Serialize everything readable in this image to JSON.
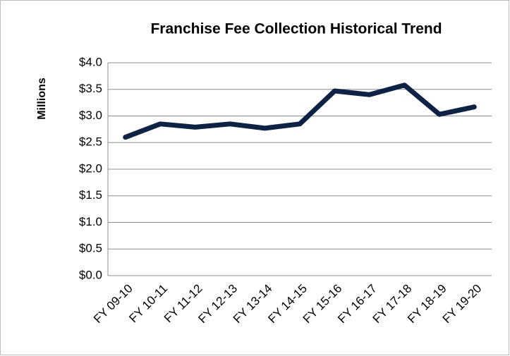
{
  "chart_data": {
    "type": "line",
    "title": "Franchise Fee Collection Historical Trend",
    "y_label": "Millions",
    "categories": [
      "FY 09-10",
      "FY 10-11",
      "FY 11-12",
      "FY 12-13",
      "FY 13-14",
      "FY 14-15",
      "FY 15-16",
      "FY 16-17",
      "FY 17-18",
      "FY 18-19",
      "FY 19-20"
    ],
    "values": [
      2.6,
      2.85,
      2.79,
      2.85,
      2.77,
      2.85,
      3.47,
      3.4,
      3.58,
      3.03,
      3.17
    ],
    "color": "#0d2245",
    "ylim": [
      0,
      4
    ],
    "yticks": [
      {
        "value": 0,
        "label": "$0.0"
      },
      {
        "value": 0.5,
        "label": "$0.5"
      },
      {
        "value": 1,
        "label": "$1.0"
      },
      {
        "value": 1.5,
        "label": "$1.5"
      },
      {
        "value": 2,
        "label": "$2.0"
      },
      {
        "value": 2.5,
        "label": "$2.5"
      },
      {
        "value": 3,
        "label": "$3.0"
      },
      {
        "value": 3.5,
        "label": "$3.5"
      },
      {
        "value": 4,
        "label": "$4.0"
      }
    ],
    "grid": true
  }
}
